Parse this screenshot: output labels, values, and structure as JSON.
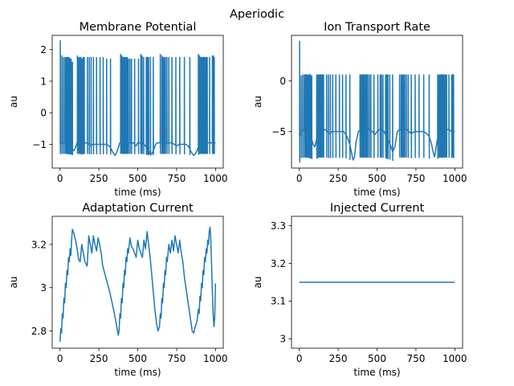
{
  "figure": {
    "suptitle": "Aperiodic"
  },
  "chart_data": [
    {
      "type": "line",
      "title": "Membrane Potential",
      "xlabel": "time (ms)",
      "ylabel": "au",
      "xlim": [
        -50,
        1050
      ],
      "ylim": [
        -1.75,
        2.45
      ],
      "xticks": [
        0,
        250,
        500,
        750,
        1000
      ],
      "yticks": [
        -1,
        0,
        1,
        2
      ],
      "series_color": "#1f77b4",
      "baseline": {
        "x": [
          0,
          10,
          20,
          30,
          40,
          55,
          70,
          80,
          90,
          100,
          110,
          120,
          130,
          140,
          150,
          155,
          165,
          175,
          185,
          195,
          210,
          225,
          240,
          255,
          270,
          285,
          300,
          315,
          325,
          335,
          345,
          355,
          365,
          375,
          385,
          395,
          410,
          420,
          430,
          440,
          450,
          460,
          470,
          480,
          490,
          500,
          510,
          520,
          530,
          540,
          550,
          560,
          570,
          580,
          590,
          600,
          615,
          625,
          635,
          645,
          655,
          665,
          675,
          685,
          700,
          710,
          720,
          735,
          750,
          765,
          780,
          795,
          810,
          825,
          835,
          845,
          860,
          870,
          885,
          895,
          905,
          915,
          925,
          940,
          955,
          965,
          975,
          985,
          995,
          1000
        ],
        "y": [
          -1.0,
          -0.95,
          -0.95,
          -0.95,
          -0.95,
          -1.0,
          -1.05,
          -1.15,
          -1.2,
          -1.1,
          -0.95,
          -0.95,
          -0.95,
          -1.0,
          -1.0,
          -0.95,
          -0.95,
          -0.95,
          -1.0,
          -1.05,
          -1.0,
          -1.0,
          -1.0,
          -1.0,
          -1.0,
          -1.0,
          -1.0,
          -1.05,
          -1.1,
          -1.2,
          -1.3,
          -1.35,
          -1.25,
          -1.1,
          -0.95,
          -0.95,
          -0.95,
          -0.95,
          -0.95,
          -0.95,
          -0.95,
          -0.95,
          -0.95,
          -1.0,
          -1.05,
          -0.95,
          -0.95,
          -0.95,
          -0.95,
          -1.0,
          -1.05,
          -1.15,
          -1.2,
          -1.3,
          -1.3,
          -1.2,
          -1.0,
          -0.95,
          -0.95,
          -0.95,
          -0.95,
          -0.95,
          -0.95,
          -0.95,
          -0.95,
          -0.95,
          -0.95,
          -1.0,
          -1.05,
          -1.0,
          -1.0,
          -1.0,
          -1.0,
          -1.05,
          -1.15,
          -1.25,
          -1.35,
          -1.3,
          -1.15,
          -1.0,
          -0.95,
          -0.95,
          -0.95,
          -0.95,
          -0.95,
          -0.95,
          -0.95,
          -0.95,
          -0.95,
          -0.95
        ]
      },
      "spikes": {
        "x": [
          2,
          12,
          22,
          32,
          40,
          47,
          52,
          60,
          66,
          72,
          80,
          112,
          120,
          128,
          135,
          142,
          150,
          156,
          176,
          188,
          200,
          215,
          235,
          258,
          278,
          300,
          325,
          390,
          398,
          405,
          412,
          418,
          426,
          433,
          440,
          450,
          460,
          480,
          505,
          520,
          528,
          538,
          555,
          562,
          570,
          582,
          600,
          645,
          655,
          662,
          670,
          678,
          688,
          700,
          720,
          745,
          770,
          800,
          835,
          890,
          898,
          906,
          913,
          920,
          926,
          932,
          940,
          947,
          962,
          980,
          986,
          992
        ],
        "peak": [
          2.28,
          1.8,
          1.75,
          1.75,
          1.75,
          1.75,
          1.75,
          1.75,
          1.7,
          1.7,
          1.6,
          1.8,
          1.75,
          1.75,
          1.75,
          1.7,
          1.75,
          1.75,
          1.75,
          1.75,
          1.75,
          1.75,
          1.75,
          1.75,
          1.75,
          1.7,
          1.7,
          1.85,
          1.8,
          1.75,
          1.75,
          1.75,
          1.75,
          1.75,
          1.7,
          1.7,
          1.7,
          1.7,
          1.7,
          1.85,
          1.8,
          1.75,
          1.75,
          1.75,
          1.75,
          1.75,
          1.75,
          1.85,
          1.8,
          1.75,
          1.75,
          1.75,
          1.75,
          1.75,
          1.75,
          1.75,
          1.75,
          1.75,
          1.75,
          1.85,
          1.8,
          1.75,
          1.75,
          1.75,
          1.75,
          1.75,
          1.75,
          1.75,
          1.75,
          1.8,
          1.8,
          1.75
        ],
        "trough": -1.35
      }
    },
    {
      "type": "line",
      "title": "Ion Transport Rate",
      "xlabel": "time (ms)",
      "ylabel": "au",
      "xlim": [
        -50,
        1050
      ],
      "ylim": [
        -8.6,
        4.5
      ],
      "xticks": [
        0,
        250,
        500,
        750,
        1000
      ],
      "yticks": [
        -5,
        0
      ],
      "series_color": "#1f77b4",
      "baseline": {
        "x": [
          0,
          15,
          30,
          45,
          60,
          75,
          90,
          100,
          110,
          120,
          135,
          150,
          165,
          180,
          195,
          210,
          225,
          240,
          255,
          270,
          285,
          300,
          315,
          325,
          335,
          345,
          355,
          365,
          380,
          395,
          410,
          430,
          450,
          470,
          485,
          500,
          515,
          530,
          545,
          560,
          575,
          590,
          600,
          615,
          630,
          645,
          660,
          675,
          690,
          705,
          720,
          740,
          760,
          780,
          800,
          820,
          835,
          850,
          860,
          870,
          885,
          900,
          920,
          940,
          960,
          980,
          1000
        ],
        "y": [
          -5.5,
          -5.0,
          -4.8,
          -4.8,
          -5.0,
          -5.5,
          -6.3,
          -6.5,
          -5.8,
          -5.0,
          -4.8,
          -4.8,
          -4.8,
          -5.0,
          -5.2,
          -5.0,
          -5.0,
          -5.0,
          -5.0,
          -5.0,
          -5.0,
          -5.3,
          -5.8,
          -6.3,
          -7.0,
          -7.8,
          -7.5,
          -6.0,
          -5.0,
          -4.8,
          -4.8,
          -4.8,
          -4.8,
          -5.0,
          -5.3,
          -5.0,
          -4.8,
          -4.8,
          -5.0,
          -5.5,
          -6.0,
          -6.5,
          -7.0,
          -6.5,
          -5.0,
          -4.8,
          -4.8,
          -4.8,
          -4.8,
          -5.0,
          -5.2,
          -5.0,
          -5.0,
          -5.0,
          -5.0,
          -5.2,
          -5.5,
          -6.2,
          -7.0,
          -7.5,
          -6.0,
          -4.8,
          -4.8,
          -4.8,
          -4.8,
          -5.0,
          -5.0
        ]
      },
      "spikes": {
        "x": [
          2,
          12,
          22,
          32,
          40,
          47,
          52,
          60,
          66,
          72,
          80,
          112,
          120,
          128,
          135,
          142,
          150,
          156,
          176,
          188,
          200,
          215,
          235,
          258,
          278,
          300,
          325,
          390,
          398,
          405,
          412,
          418,
          426,
          433,
          440,
          450,
          460,
          480,
          505,
          520,
          528,
          538,
          555,
          562,
          570,
          582,
          600,
          645,
          655,
          662,
          670,
          678,
          688,
          700,
          720,
          745,
          770,
          800,
          835,
          890,
          898,
          906,
          913,
          920,
          926,
          932,
          940,
          947,
          962,
          980,
          986,
          992
        ],
        "peak": [
          3.9,
          0.5,
          0.6,
          0.6,
          0.6,
          0.6,
          0.6,
          0.6,
          0.6,
          0.6,
          0.5,
          0.6,
          0.6,
          0.6,
          0.6,
          0.6,
          0.6,
          0.6,
          0.6,
          0.6,
          0.6,
          0.6,
          0.6,
          0.6,
          0.6,
          0.6,
          0.6,
          0.6,
          0.6,
          0.6,
          0.6,
          0.6,
          0.6,
          0.6,
          0.6,
          0.6,
          0.6,
          0.6,
          0.6,
          0.6,
          0.6,
          0.6,
          0.6,
          0.6,
          0.6,
          0.6,
          0.6,
          0.6,
          0.6,
          0.6,
          0.6,
          0.6,
          0.6,
          0.6,
          0.6,
          0.6,
          0.6,
          0.6,
          0.6,
          0.6,
          0.6,
          0.6,
          0.6,
          0.6,
          0.6,
          0.6,
          0.6,
          0.6,
          0.6,
          0.6,
          0.6,
          0.6
        ],
        "trough": -8.0
      }
    },
    {
      "type": "line",
      "title": "Adaptation Current",
      "xlabel": "time (ms)",
      "ylabel": "au",
      "xlim": [
        -50,
        1050
      ],
      "ylim": [
        2.72,
        3.33
      ],
      "xticks": [
        0,
        250,
        500,
        750,
        1000
      ],
      "yticks": [
        2.8,
        3.0,
        3.2
      ],
      "series_color": "#1f77b4",
      "x": [
        0,
        5,
        10,
        15,
        20,
        25,
        30,
        35,
        40,
        45,
        50,
        55,
        60,
        65,
        70,
        75,
        80,
        90,
        100,
        110,
        120,
        130,
        140,
        150,
        160,
        175,
        185,
        195,
        205,
        215,
        225,
        235,
        245,
        255,
        265,
        275,
        290,
        305,
        320,
        335,
        350,
        365,
        375,
        380,
        385,
        390,
        395,
        400,
        405,
        410,
        415,
        420,
        425,
        430,
        435,
        440,
        450,
        460,
        470,
        480,
        490,
        500,
        510,
        520,
        530,
        540,
        550,
        560,
        570,
        580,
        590,
        600,
        610,
        620,
        630,
        640,
        645,
        650,
        655,
        660,
        665,
        670,
        675,
        680,
        685,
        690,
        700,
        710,
        720,
        730,
        740,
        750,
        760,
        770,
        780,
        790,
        800,
        810,
        820,
        830,
        840,
        850,
        860,
        870,
        880,
        890,
        895,
        900,
        905,
        910,
        915,
        920,
        925,
        930,
        935,
        940,
        945,
        950,
        955,
        960,
        965,
        970,
        975,
        980,
        985,
        990,
        995,
        1000
      ],
      "y": [
        2.75,
        2.81,
        2.79,
        2.88,
        2.86,
        2.95,
        2.93,
        3.02,
        3.0,
        3.08,
        3.06,
        3.14,
        3.12,
        3.18,
        3.15,
        3.22,
        3.27,
        3.25,
        3.22,
        3.18,
        3.13,
        3.12,
        3.2,
        3.16,
        3.12,
        3.1,
        3.24,
        3.2,
        3.16,
        3.24,
        3.2,
        3.17,
        3.23,
        3.2,
        3.16,
        3.1,
        3.06,
        3.02,
        2.98,
        2.93,
        2.88,
        2.82,
        2.78,
        2.8,
        2.88,
        2.86,
        2.95,
        2.93,
        3.02,
        3.0,
        3.08,
        3.06,
        3.14,
        3.12,
        3.18,
        3.16,
        3.23,
        3.19,
        3.18,
        3.16,
        3.14,
        3.22,
        3.18,
        3.16,
        3.14,
        3.22,
        3.18,
        3.26,
        3.2,
        3.14,
        3.06,
        2.98,
        2.9,
        2.84,
        2.8,
        2.82,
        2.88,
        2.86,
        2.95,
        2.93,
        3.02,
        3.0,
        3.08,
        3.06,
        3.14,
        3.12,
        3.2,
        3.16,
        3.22,
        3.17,
        3.24,
        3.2,
        3.16,
        3.22,
        3.16,
        3.12,
        3.05,
        3.0,
        2.95,
        2.9,
        2.85,
        2.8,
        2.79,
        2.82,
        2.84,
        2.9,
        2.88,
        2.96,
        2.94,
        3.02,
        3.0,
        3.08,
        3.06,
        3.14,
        3.12,
        3.18,
        3.16,
        3.22,
        3.2,
        3.26,
        3.28,
        3.22,
        3.1,
        2.98,
        2.88,
        2.82,
        2.86,
        3.02
      ]
    },
    {
      "type": "line",
      "title": "Injected Current",
      "xlabel": "time (ms)",
      "ylabel": "au",
      "xlim": [
        -50,
        1050
      ],
      "ylim": [
        2.975,
        3.325
      ],
      "xticks": [
        0,
        250,
        500,
        750,
        1000
      ],
      "yticks": [
        3.0,
        3.1,
        3.2,
        3.3
      ],
      "series_color": "#1f77b4",
      "x": [
        0,
        1000
      ],
      "y": [
        3.15,
        3.15
      ]
    }
  ]
}
